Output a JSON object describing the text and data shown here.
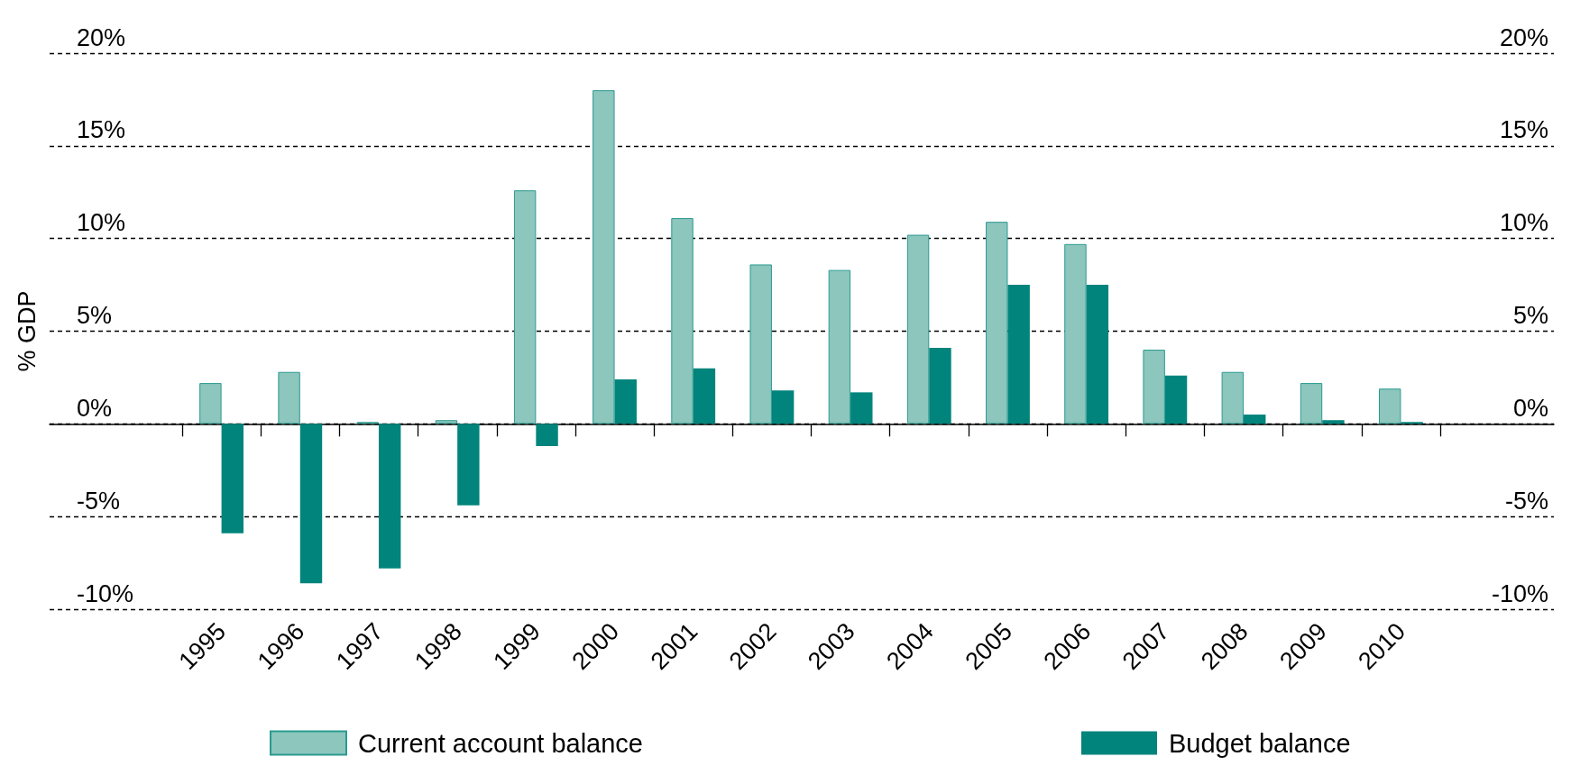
{
  "chart_data": {
    "type": "bar",
    "ylabel": "% GDP",
    "categories": [
      "1995",
      "1996",
      "1997",
      "1998",
      "1999",
      "2000",
      "2001",
      "2002",
      "2003",
      "2004",
      "2005",
      "2006",
      "2007",
      "2008",
      "2009",
      "2010"
    ],
    "series": [
      {
        "name": "Current account balance",
        "color": "#8cc6bd",
        "values": [
          2.2,
          2.8,
          0.1,
          0.2,
          12.6,
          18.0,
          11.1,
          8.6,
          8.3,
          10.2,
          10.9,
          9.7,
          4.0,
          2.8,
          2.2,
          1.9
        ]
      },
      {
        "name": "Budget balance",
        "color": "#00847c",
        "values": [
          -5.9,
          -8.6,
          -7.8,
          -4.4,
          -1.2,
          2.4,
          3.0,
          1.8,
          1.7,
          4.1,
          7.5,
          7.5,
          2.6,
          0.5,
          0.2,
          0.1
        ]
      }
    ],
    "ylim": [
      -10,
      20
    ],
    "yticks": [
      {
        "value": -10,
        "label": "-10%"
      },
      {
        "value": -5,
        "label": "-5%"
      },
      {
        "value": 0,
        "label": "0%"
      },
      {
        "value": 5,
        "label": "5%"
      },
      {
        "value": 10,
        "label": "10%"
      },
      {
        "value": 15,
        "label": "15%"
      },
      {
        "value": 20,
        "label": "20%"
      }
    ],
    "y2lim": [
      -10,
      20
    ],
    "y2ticks": [
      {
        "value": -10,
        "label": "-10%"
      },
      {
        "value": -5,
        "label": "-5%"
      },
      {
        "value": 0,
        "label": "0%"
      },
      {
        "value": 5,
        "label": "5%"
      },
      {
        "value": 10,
        "label": "10%"
      },
      {
        "value": 15,
        "label": "15%"
      },
      {
        "value": 20,
        "label": "20%"
      }
    ],
    "grid": "y",
    "legend": "bottom"
  }
}
